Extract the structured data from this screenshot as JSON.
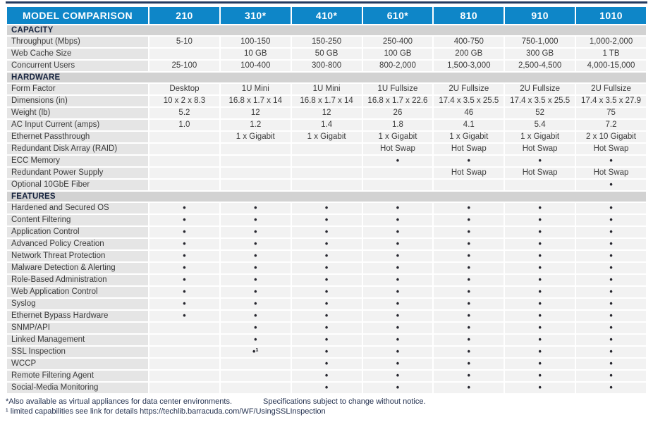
{
  "colors": {
    "top_strip": "#233A60",
    "header_bg": "#0E86C8",
    "header_text": "#FFFFFF",
    "section_bg": "#D2D2D2",
    "label_cell_bg": "#E5E5E5",
    "value_cell_bg": "#F2F2F2",
    "body_text": "#3C3C3C",
    "footer_text": "#22304F"
  },
  "header": {
    "title": "MODEL COMPARISON",
    "models": [
      "210",
      "310*",
      "410*",
      "610*",
      "810",
      "910",
      "1010"
    ]
  },
  "sections": [
    {
      "label": "CAPACITY",
      "rows": [
        {
          "label": "Throughput (Mbps)",
          "values": [
            "5-10",
            "100-150",
            "150-250",
            "250-400",
            "400-750",
            "750-1,000",
            "1,000-2,000"
          ]
        },
        {
          "label": "Web Cache Size",
          "values": [
            "",
            "10 GB",
            "50 GB",
            "100 GB",
            "200 GB",
            "300 GB",
            "1 TB"
          ]
        },
        {
          "label": "Concurrent Users",
          "values": [
            "25-100",
            "100-400",
            "300-800",
            "800-2,000",
            "1,500-3,000",
            "2,500-4,500",
            "4,000-15,000"
          ]
        }
      ]
    },
    {
      "label": "HARDWARE",
      "rows": [
        {
          "label": "Form Factor",
          "values": [
            "Desktop",
            "1U Mini",
            "1U Mini",
            "1U Fullsize",
            "2U Fullsize",
            "2U Fullsize",
            "2U Fullsize"
          ]
        },
        {
          "label": "Dimensions (in)",
          "values": [
            "10 x 2 x 8.3",
            "16.8 x 1.7 x 14",
            "16.8 x 1.7 x 14",
            "16.8 x 1.7 x 22.6",
            "17.4 x 3.5 x 25.5",
            "17.4 x 3.5 x 25.5",
            "17.4 x 3.5 x 27.9"
          ]
        },
        {
          "label": "Weight (lb)",
          "values": [
            "5.2",
            "12",
            "12",
            "26",
            "46",
            "52",
            "75"
          ]
        },
        {
          "label": "AC Input Current (amps)",
          "values": [
            "1.0",
            "1.2",
            "1.4",
            "1.8",
            "4.1",
            "5.4",
            "7.2"
          ]
        },
        {
          "label": "Ethernet Passthrough",
          "values": [
            "",
            "1 x Gigabit",
            "1 x Gigabit",
            "1 x Gigabit",
            "1 x Gigabit",
            "1 x Gigabit",
            "2 x 10 Gigabit"
          ]
        },
        {
          "label": "Redundant Disk Array (RAID)",
          "values": [
            "",
            "",
            "",
            "Hot Swap",
            "Hot Swap",
            "Hot Swap",
            "Hot Swap"
          ]
        },
        {
          "label": "ECC Memory",
          "values": [
            "",
            "",
            "",
            "•",
            "•",
            "•",
            "•"
          ]
        },
        {
          "label": "Redundant Power Supply",
          "values": [
            "",
            "",
            "",
            "",
            "Hot Swap",
            "Hot Swap",
            "Hot Swap"
          ]
        },
        {
          "label": "Optional 10GbE Fiber",
          "values": [
            "",
            "",
            "",
            "",
            "",
            "",
            "•"
          ]
        }
      ]
    },
    {
      "label": "FEATURES",
      "rows": [
        {
          "label": "Hardened and Secured OS",
          "values": [
            "•",
            "•",
            "•",
            "•",
            "•",
            "•",
            "•"
          ]
        },
        {
          "label": "Content Filtering",
          "values": [
            "•",
            "•",
            "•",
            "•",
            "•",
            "•",
            "•"
          ]
        },
        {
          "label": "Application Control",
          "values": [
            "•",
            "•",
            "•",
            "•",
            "•",
            "•",
            "•"
          ]
        },
        {
          "label": "Advanced Policy Creation",
          "values": [
            "•",
            "•",
            "•",
            "•",
            "•",
            "•",
            "•"
          ]
        },
        {
          "label": "Network Threat Protection",
          "values": [
            "•",
            "•",
            "•",
            "•",
            "•",
            "•",
            "•"
          ]
        },
        {
          "label": "Malware Detection & Alerting",
          "values": [
            "•",
            "•",
            "•",
            "•",
            "•",
            "•",
            "•"
          ]
        },
        {
          "label": "Role-Based Administration",
          "values": [
            "•",
            "•",
            "•",
            "•",
            "•",
            "•",
            "•"
          ]
        },
        {
          "label": "Web Application Control",
          "values": [
            "•",
            "•",
            "•",
            "•",
            "•",
            "•",
            "•"
          ]
        },
        {
          "label": "Syslog",
          "values": [
            "•",
            "•",
            "•",
            "•",
            "•",
            "•",
            "•"
          ]
        },
        {
          "label": "Ethernet Bypass Hardware",
          "values": [
            "•",
            "•",
            "•",
            "•",
            "•",
            "•",
            "•"
          ]
        },
        {
          "label": "SNMP/API",
          "values": [
            "",
            "•",
            "•",
            "•",
            "•",
            "•",
            "•"
          ]
        },
        {
          "label": "Linked Management",
          "values": [
            "",
            "•",
            "•",
            "•",
            "•",
            "•",
            "•"
          ]
        },
        {
          "label": "SSL Inspection",
          "values": [
            "",
            "•¹",
            "•",
            "•",
            "•",
            "•",
            "•"
          ]
        },
        {
          "label": "WCCP",
          "values": [
            "",
            "",
            "•",
            "•",
            "•",
            "•",
            "•"
          ]
        },
        {
          "label": "Remote Filtering Agent",
          "values": [
            "",
            "",
            "•",
            "•",
            "•",
            "•",
            "•"
          ]
        },
        {
          "label": "Social-Media Monitoring",
          "values": [
            "",
            "",
            "•",
            "•",
            "•",
            "•",
            "•"
          ]
        }
      ]
    }
  ],
  "footer": {
    "virtual_note": "*Also available as virtual appliances for data center environments.",
    "spec_note": "Specifications subject to change without notice.",
    "ssl_note": "¹ limited capabilities see link for details https://techlib.barracuda.com/WF/UsingSSLInspection"
  }
}
